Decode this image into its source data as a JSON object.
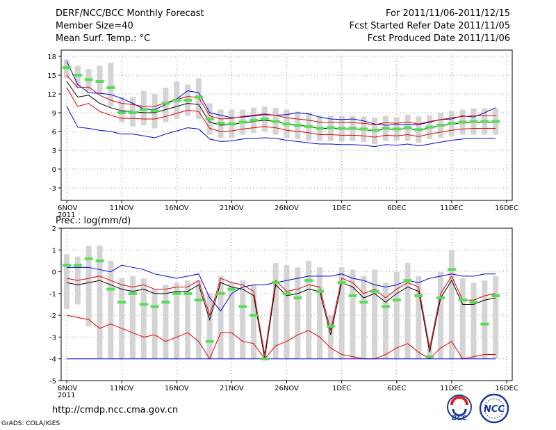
{
  "header": {
    "title": "DERF/NCC/BCC Monthly Forecast",
    "member_size": "Member Size=40",
    "variable": "Mean Surf. Temp.: °C",
    "period": "For 2011/11/06-2011/12/15",
    "refer_date": "Fcst Started Refer Date 2011/11/05",
    "produced_date": "Fcst Produced Date 2011/11/06"
  },
  "footer": {
    "url": "http://cmdp.ncc.cma.gov.cn",
    "grads": "GrADS: COLA/IGES",
    "logo_left": "BCC",
    "logo_right": "NCC"
  },
  "colors": {
    "box": "#d4d4d4",
    "median": "#55dd55",
    "mean": "#000000",
    "spread": "#dd0000",
    "extreme": "#0000cc",
    "grid": "#999999"
  },
  "chart_data": [
    {
      "type": "line",
      "title": "",
      "ylabel": "Mean Surf. Temp.: °C",
      "ylim": [
        -5,
        19
      ],
      "yticks": [
        "-3",
        "0",
        "3",
        "6",
        "9",
        "12",
        "15",
        "18"
      ],
      "ytick_values": [
        -3,
        0,
        3,
        6,
        9,
        12,
        15,
        18
      ],
      "xticks": [
        "6NOV\n2011",
        "11NOV",
        "16NOV",
        "21NOV",
        "26NOV",
        "1DEC",
        "6DEC",
        "11DEC",
        "16DEC"
      ],
      "xtick_days": [
        0,
        5,
        10,
        15,
        20,
        25,
        30,
        35,
        40
      ],
      "series": [
        {
          "name": "max",
          "values": [
            17.2,
            13.5,
            12.2,
            12.1,
            11.9,
            11.3,
            10.5,
            9.6,
            9.5,
            10.3,
            11.2,
            12.5,
            12.2,
            9.0,
            8.6,
            8.2,
            8.3,
            8.5,
            8.7,
            8.6,
            8.7,
            9.0,
            8.8,
            8.3,
            8.0,
            7.9,
            8.0,
            7.7,
            7.2,
            7.0,
            7.1,
            7.1,
            7.1,
            7.5,
            7.9,
            8.0,
            8.5,
            8.3,
            9.0,
            9.8
          ]
        },
        {
          "name": "median",
          "values": [
            16.2,
            15.0,
            14.3,
            14.0,
            13.0,
            9.0,
            9.0,
            9.5,
            9.3,
            10.5,
            11.0,
            11.0,
            11.5,
            8.0,
            7.3,
            7.2,
            7.5,
            7.8,
            8.0,
            7.6,
            7.2,
            7.0,
            6.8,
            6.5,
            6.6,
            6.5,
            6.5,
            6.4,
            6.2,
            6.5,
            6.4,
            6.6,
            6.3,
            6.7,
            7.0,
            7.3,
            7.5,
            7.6,
            7.6,
            7.6
          ]
        },
        {
          "name": "mean",
          "values": [
            14.0,
            11.5,
            11.8,
            10.5,
            9.8,
            9.3,
            9.2,
            9.0,
            9.0,
            9.5,
            10.0,
            10.5,
            10.3,
            7.5,
            7.0,
            7.1,
            7.4,
            7.6,
            7.8,
            7.6,
            7.2,
            7.0,
            6.8,
            6.5,
            6.5,
            6.4,
            6.4,
            6.3,
            6.1,
            6.4,
            6.3,
            6.5,
            6.2,
            6.6,
            6.9,
            7.2,
            7.4,
            7.5,
            7.5,
            7.5
          ]
        },
        {
          "name": "spread_upper",
          "values": [
            15.0,
            13.0,
            13.1,
            11.8,
            11.0,
            10.5,
            10.3,
            10.0,
            10.0,
            10.6,
            11.1,
            11.6,
            11.4,
            8.5,
            8.0,
            8.1,
            8.4,
            8.6,
            8.8,
            8.6,
            8.2,
            8.0,
            7.8,
            7.5,
            7.5,
            7.4,
            7.4,
            7.3,
            7.1,
            7.4,
            7.3,
            7.5,
            7.2,
            7.6,
            7.9,
            8.2,
            8.4,
            8.5,
            8.5,
            8.5
          ]
        },
        {
          "name": "spread_lower",
          "values": [
            13.0,
            10.0,
            10.5,
            9.2,
            8.6,
            8.1,
            8.1,
            8.0,
            8.0,
            8.4,
            8.9,
            9.4,
            9.2,
            6.5,
            6.0,
            6.1,
            6.4,
            6.6,
            6.8,
            6.6,
            6.2,
            6.0,
            5.8,
            5.5,
            5.5,
            5.4,
            5.4,
            5.3,
            5.1,
            5.4,
            5.3,
            5.5,
            5.2,
            5.6,
            5.9,
            6.2,
            6.4,
            6.5,
            6.5,
            6.5
          ]
        },
        {
          "name": "min",
          "values": [
            10.0,
            6.7,
            6.5,
            6.2,
            6.0,
            5.6,
            5.6,
            5.3,
            5.0,
            5.6,
            6.1,
            6.6,
            6.4,
            4.8,
            4.4,
            4.5,
            4.8,
            4.9,
            5.0,
            4.9,
            4.6,
            4.4,
            4.2,
            4.0,
            4.0,
            3.9,
            3.9,
            3.8,
            3.6,
            3.9,
            3.8,
            4.0,
            3.7,
            4.0,
            4.3,
            4.6,
            4.8,
            4.9,
            4.9,
            4.9
          ]
        }
      ],
      "boxes": {
        "low": [
          14.5,
          13.0,
          12.5,
          12.0,
          10.0,
          7.5,
          6.8,
          7.0,
          6.5,
          7.5,
          8.0,
          8.5,
          8.0,
          5.5,
          5.0,
          5.0,
          5.5,
          5.8,
          6.0,
          5.5,
          5.0,
          4.8,
          4.5,
          4.5,
          4.5,
          4.4,
          4.5,
          4.3,
          4.0,
          4.5,
          4.5,
          4.5,
          4.2,
          4.8,
          5.0,
          5.3,
          5.5,
          5.5,
          5.5,
          5.5
        ],
        "high": [
          17.5,
          16.5,
          16.0,
          16.5,
          17.0,
          11.5,
          11.5,
          12.5,
          12.0,
          13.0,
          14.0,
          13.5,
          14.5,
          10.5,
          9.5,
          9.5,
          9.5,
          9.8,
          10.0,
          9.8,
          9.5,
          9.2,
          9.0,
          8.5,
          8.6,
          8.5,
          8.5,
          8.4,
          8.2,
          8.5,
          8.3,
          8.7,
          8.4,
          8.6,
          9.0,
          9.3,
          9.5,
          9.7,
          9.7,
          9.7
        ]
      }
    },
    {
      "type": "line",
      "title": "",
      "ylabel": "Prec.: log(mm/d)",
      "ylim": [
        -5,
        2
      ],
      "yticks": [
        "-5",
        "-4",
        "-3",
        "-2",
        "-1",
        "0",
        "1",
        "2"
      ],
      "ytick_values": [
        -5,
        -4,
        -3,
        -2,
        -1,
        0,
        1,
        2
      ],
      "xticks": [
        "6NOV\n2011",
        "11NOV",
        "16NOV",
        "21NOV",
        "26NOV",
        "1DEC",
        "6DEC",
        "11DEC",
        "16DEC"
      ],
      "xtick_days": [
        0,
        5,
        10,
        15,
        20,
        25,
        30,
        35,
        40
      ],
      "series": [
        {
          "name": "max",
          "values": [
            0.2,
            0.2,
            0.2,
            0.1,
            0.0,
            0.3,
            0.2,
            0.1,
            -0.1,
            -0.2,
            -0.3,
            -0.2,
            -0.1,
            -1.2,
            -1.8,
            -1.0,
            -0.7,
            -0.6,
            -0.6,
            -0.5,
            -0.4,
            -0.3,
            -0.2,
            -0.2,
            -0.2,
            -0.1,
            -0.3,
            -0.4,
            -0.6,
            -0.7,
            -0.6,
            -0.4,
            -0.5,
            -0.3,
            -0.2,
            -0.1,
            -0.2,
            -0.2,
            -0.1,
            -0.1
          ]
        },
        {
          "name": "median",
          "values": [
            0.3,
            0.3,
            0.6,
            0.5,
            -0.8,
            -1.4,
            -1.0,
            -1.5,
            -1.6,
            -1.4,
            -1.0,
            -1.0,
            -1.3,
            -3.2,
            -1.0,
            -0.8,
            -1.6,
            -2.0,
            -4.0,
            -0.5,
            -1.0,
            -1.2,
            -0.4,
            -0.9,
            -2.5,
            -0.5,
            -1.1,
            -1.4,
            -0.9,
            -1.6,
            -1.3,
            -0.4,
            -1.1,
            -3.9,
            -1.2,
            0.1,
            -1.3,
            -1.4,
            -2.4,
            -1.1
          ]
        },
        {
          "name": "mean",
          "values": [
            -0.5,
            -0.6,
            -0.5,
            -0.4,
            -0.6,
            -0.8,
            -0.9,
            -0.8,
            -1.0,
            -1.0,
            -0.9,
            -0.9,
            -0.6,
            -2.2,
            -0.5,
            -0.7,
            -0.8,
            -1.1,
            -4.0,
            -0.6,
            -1.1,
            -1.0,
            -0.8,
            -0.9,
            -2.9,
            -0.5,
            -0.7,
            -1.2,
            -1.0,
            -1.4,
            -1.0,
            -0.7,
            -0.9,
            -3.7,
            -1.2,
            -0.4,
            -1.5,
            -1.5,
            -1.3,
            -1.2
          ]
        },
        {
          "name": "spread_upper",
          "values": [
            -0.3,
            -0.4,
            -0.3,
            -0.2,
            -0.4,
            -0.6,
            -0.7,
            -0.6,
            -0.8,
            -0.8,
            -0.7,
            -0.7,
            -0.4,
            -2.0,
            -0.3,
            -0.5,
            -0.6,
            -0.9,
            -3.8,
            -0.4,
            -0.9,
            -0.8,
            -0.6,
            -0.7,
            -2.7,
            -0.3,
            -0.5,
            -1.0,
            -0.8,
            -1.2,
            -0.8,
            -0.5,
            -0.7,
            -3.5,
            -1.0,
            -0.2,
            -1.3,
            -1.3,
            -1.1,
            -1.0
          ]
        },
        {
          "name": "spread_lower",
          "values": [
            -2.0,
            -2.1,
            -2.2,
            -2.6,
            -2.4,
            -2.6,
            -2.8,
            -3.0,
            -2.9,
            -3.2,
            -3.0,
            -2.8,
            -3.2,
            -4.0,
            -2.8,
            -2.8,
            -3.2,
            -3.3,
            -4.0,
            -3.4,
            -3.2,
            -2.9,
            -2.7,
            -3.0,
            -3.5,
            -3.8,
            -3.9,
            -4.0,
            -4.0,
            -3.8,
            -3.5,
            -3.3,
            -3.7,
            -4.0,
            -3.5,
            -3.2,
            -4.0,
            -3.9,
            -3.8,
            -3.8
          ]
        },
        {
          "name": "min",
          "values": [
            -4.0,
            -4.0,
            -4.0,
            -4.0,
            -4.0,
            -4.0,
            -4.0,
            -4.0,
            -4.0,
            -4.0,
            -4.0,
            -4.0,
            -4.0,
            -4.0,
            -4.0,
            -4.0,
            -4.0,
            -4.0,
            -4.0,
            -4.0,
            -4.0,
            -4.0,
            -4.0,
            -4.0,
            -4.0,
            -4.0,
            -4.0,
            -4.0,
            -4.0,
            -4.0,
            -4.0,
            -4.0,
            -4.0,
            -4.0,
            -4.0,
            -4.0,
            -4.0,
            -4.0,
            -4.0,
            -4.0
          ]
        }
      ],
      "boxes": {
        "low": [
          -1.7,
          -1.5,
          -2.5,
          -4.0,
          -4.0,
          -4.0,
          -4.0,
          -4.0,
          -4.0,
          -4.0,
          -4.0,
          -4.0,
          -4.0,
          -4.0,
          -4.0,
          -4.0,
          -4.0,
          -4.0,
          -4.0,
          -4.0,
          -4.0,
          -4.0,
          -4.0,
          -4.0,
          -4.0,
          -4.0,
          -4.0,
          -4.0,
          -4.0,
          -4.0,
          -4.0,
          -4.0,
          -4.0,
          -4.0,
          -4.0,
          -4.0,
          -4.0,
          -4.0,
          -4.0,
          -4.0
        ],
        "high": [
          0.8,
          0.7,
          1.2,
          1.2,
          0.5,
          -0.3,
          -0.2,
          -0.3,
          -0.8,
          -0.6,
          -0.5,
          -0.4,
          -0.4,
          -1.0,
          -0.2,
          -0.5,
          -0.4,
          -0.6,
          -4.0,
          0.4,
          0.3,
          0.2,
          0.5,
          0.2,
          -2.0,
          0.2,
          0.1,
          -0.2,
          0.1,
          -0.5,
          0.0,
          0.4,
          -0.2,
          -3.5,
          0.0,
          1.0,
          -0.3,
          -0.5,
          -0.4,
          -0.2
        ]
      }
    }
  ]
}
